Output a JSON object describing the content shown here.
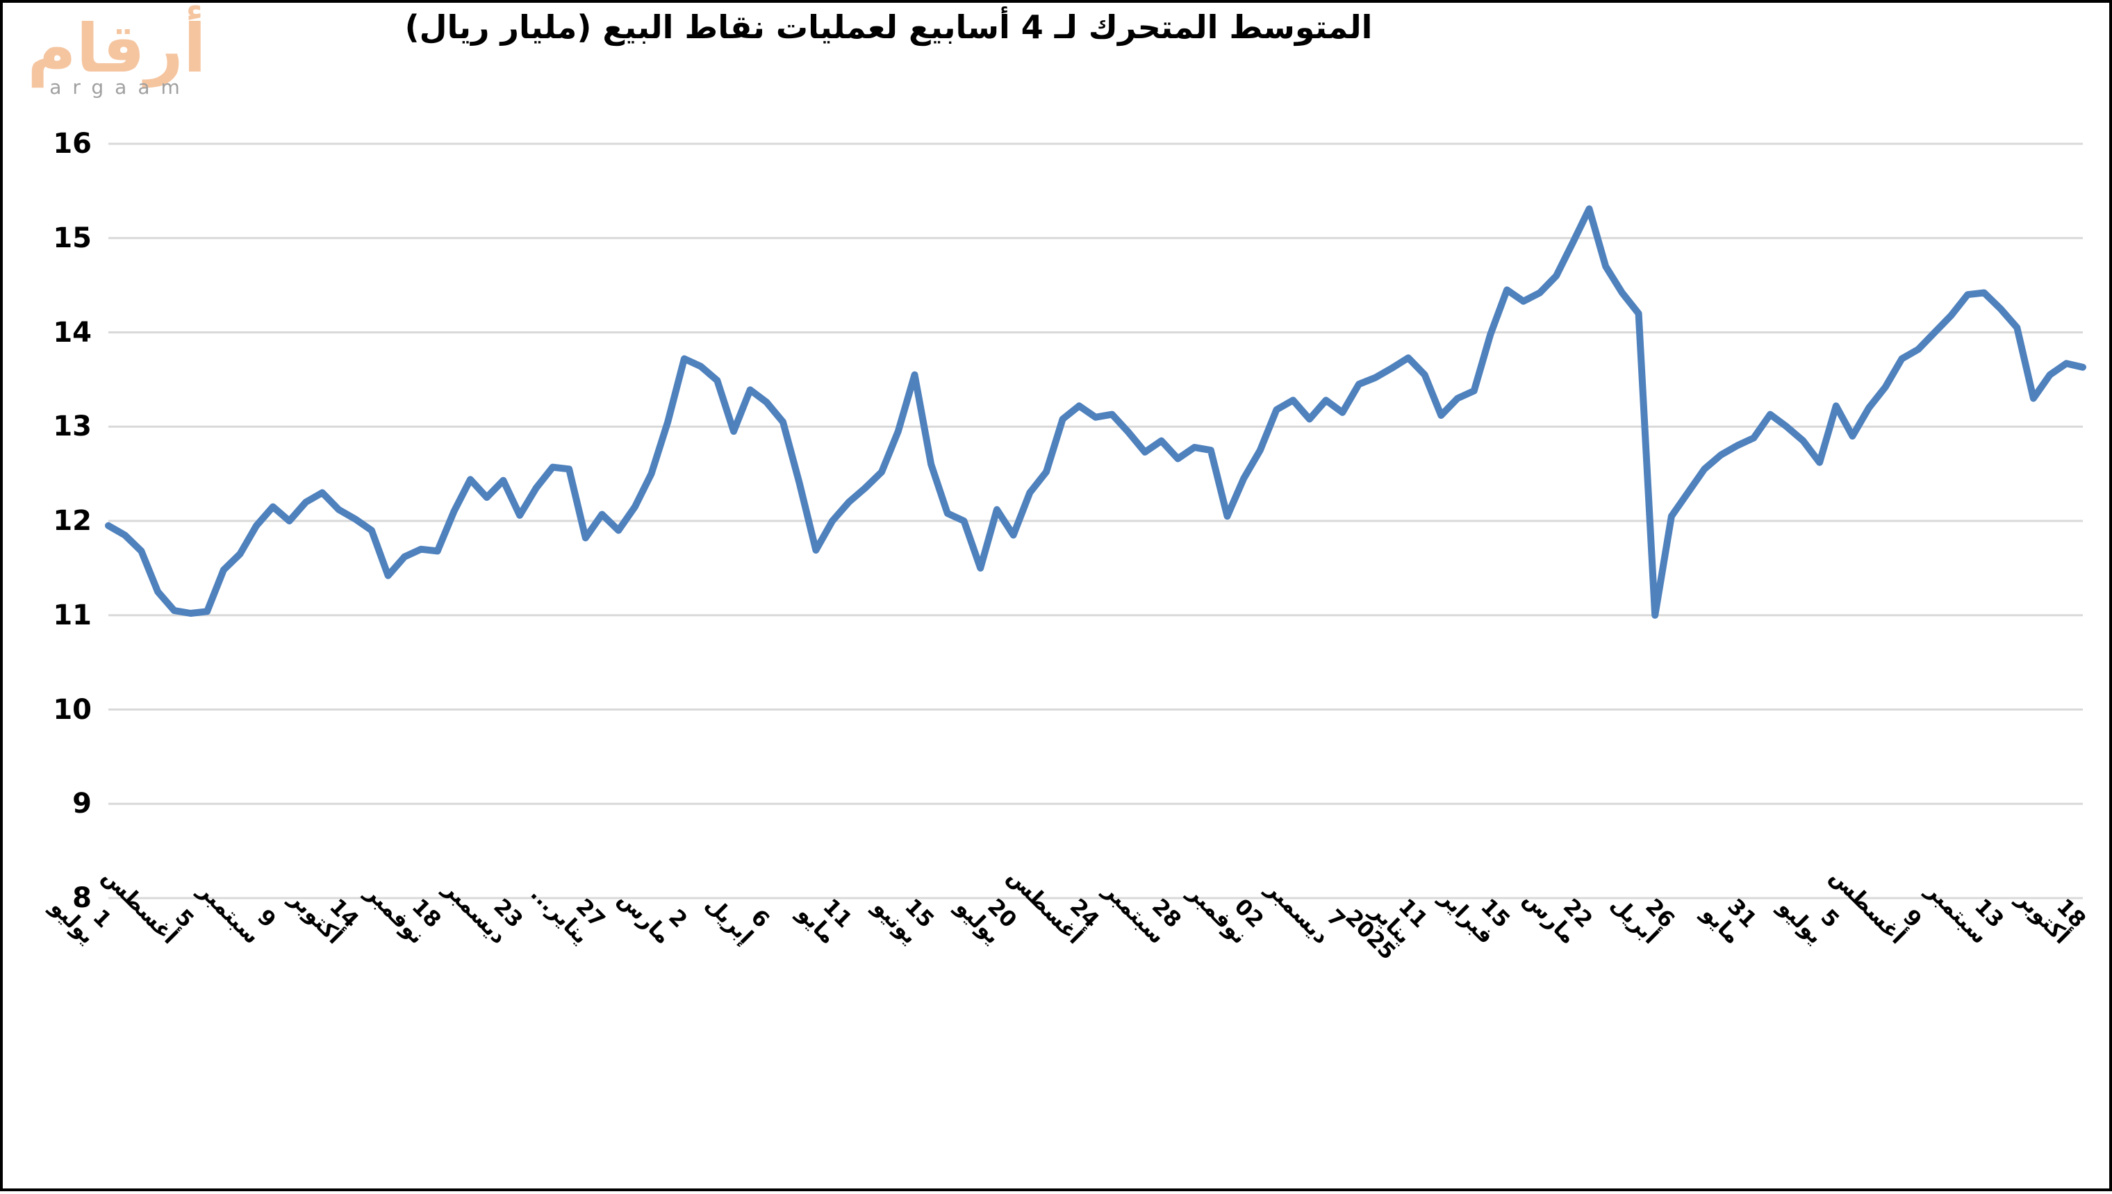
{
  "logo": {
    "arabic": "أرقام",
    "latin": "argaam",
    "arabic_color": "#f5c5a0",
    "latin_color": "#a0a0a0"
  },
  "title": "المتوسط المتحرك لـ 4 أسابيع لعمليات نقاط البيع (مليار ريال)",
  "chart_data": {
    "type": "line",
    "title": "المتوسط المتحرك لـ 4 أسابيع لعمليات نقاط البيع (مليار ريال)",
    "ylabel": "",
    "xlabel": "",
    "ylim": [
      8,
      16
    ],
    "y_ticks": [
      16,
      15,
      14,
      13,
      12,
      11,
      10,
      9,
      8
    ],
    "grid": "horizontal",
    "gridline_color": "#d9d9d9",
    "line_color": "#4f81bd",
    "x_tick_every": 5,
    "x_tick_labels": [
      "1 يوليو",
      "5 أغسطس",
      "9 سبتمبر",
      "14 أكتوبر",
      "18 نوفمبر",
      "23 ديسمبر",
      "27 يناير...",
      "2 مارس",
      "6 إبريل",
      "11 مايو",
      "15 يونيو",
      "20 يوليو",
      "24 أغسطس",
      "28 سبتمبر",
      "02 نوفمبر",
      "7 ديسمبر",
      "11 يناير\n2025",
      "15 فبراير",
      "22 مارس",
      "26 أبريل",
      "31 مايو",
      "5 يوليو",
      "9 أغسطس",
      "13 سبتمبر",
      "18 أكتوبر"
    ],
    "series": [
      {
        "name": "المتوسط المتحرك لـ 4 أسابيع",
        "values": [
          11.95,
          11.85,
          11.68,
          11.25,
          11.05,
          11.02,
          11.04,
          11.48,
          11.65,
          11.95,
          12.15,
          12.0,
          12.2,
          12.3,
          12.12,
          12.02,
          11.9,
          11.42,
          11.62,
          11.7,
          11.68,
          12.1,
          12.44,
          12.25,
          12.43,
          12.06,
          12.35,
          12.57,
          12.55,
          11.82,
          12.07,
          11.9,
          12.15,
          12.5,
          13.05,
          13.72,
          13.64,
          13.49,
          12.95,
          13.39,
          13.26,
          13.05,
          12.4,
          11.69,
          12.0,
          12.2,
          12.35,
          12.52,
          12.95,
          13.55,
          12.6,
          12.08,
          12.0,
          11.5,
          12.12,
          11.85,
          12.3,
          12.52,
          13.08,
          13.22,
          13.1,
          13.13,
          12.94,
          12.73,
          12.85,
          12.66,
          12.78,
          12.75,
          12.05,
          12.45,
          12.75,
          13.18,
          13.28,
          13.08,
          13.28,
          13.15,
          13.45,
          13.52,
          13.62,
          13.73,
          13.55,
          13.12,
          13.3,
          13.38,
          13.98,
          14.45,
          14.33,
          14.42,
          14.6,
          14.95,
          15.31,
          14.7,
          14.42,
          14.2,
          11.0,
          12.05,
          12.3,
          12.55,
          12.7,
          12.8,
          12.88,
          13.13,
          13.0,
          12.85,
          12.62,
          13.22,
          12.9,
          13.2,
          13.42,
          13.72,
          13.82,
          14.0,
          14.18,
          14.4,
          14.42,
          14.25,
          14.05,
          13.3,
          13.55,
          13.67,
          13.63
        ]
      }
    ]
  },
  "layout_note": ""
}
